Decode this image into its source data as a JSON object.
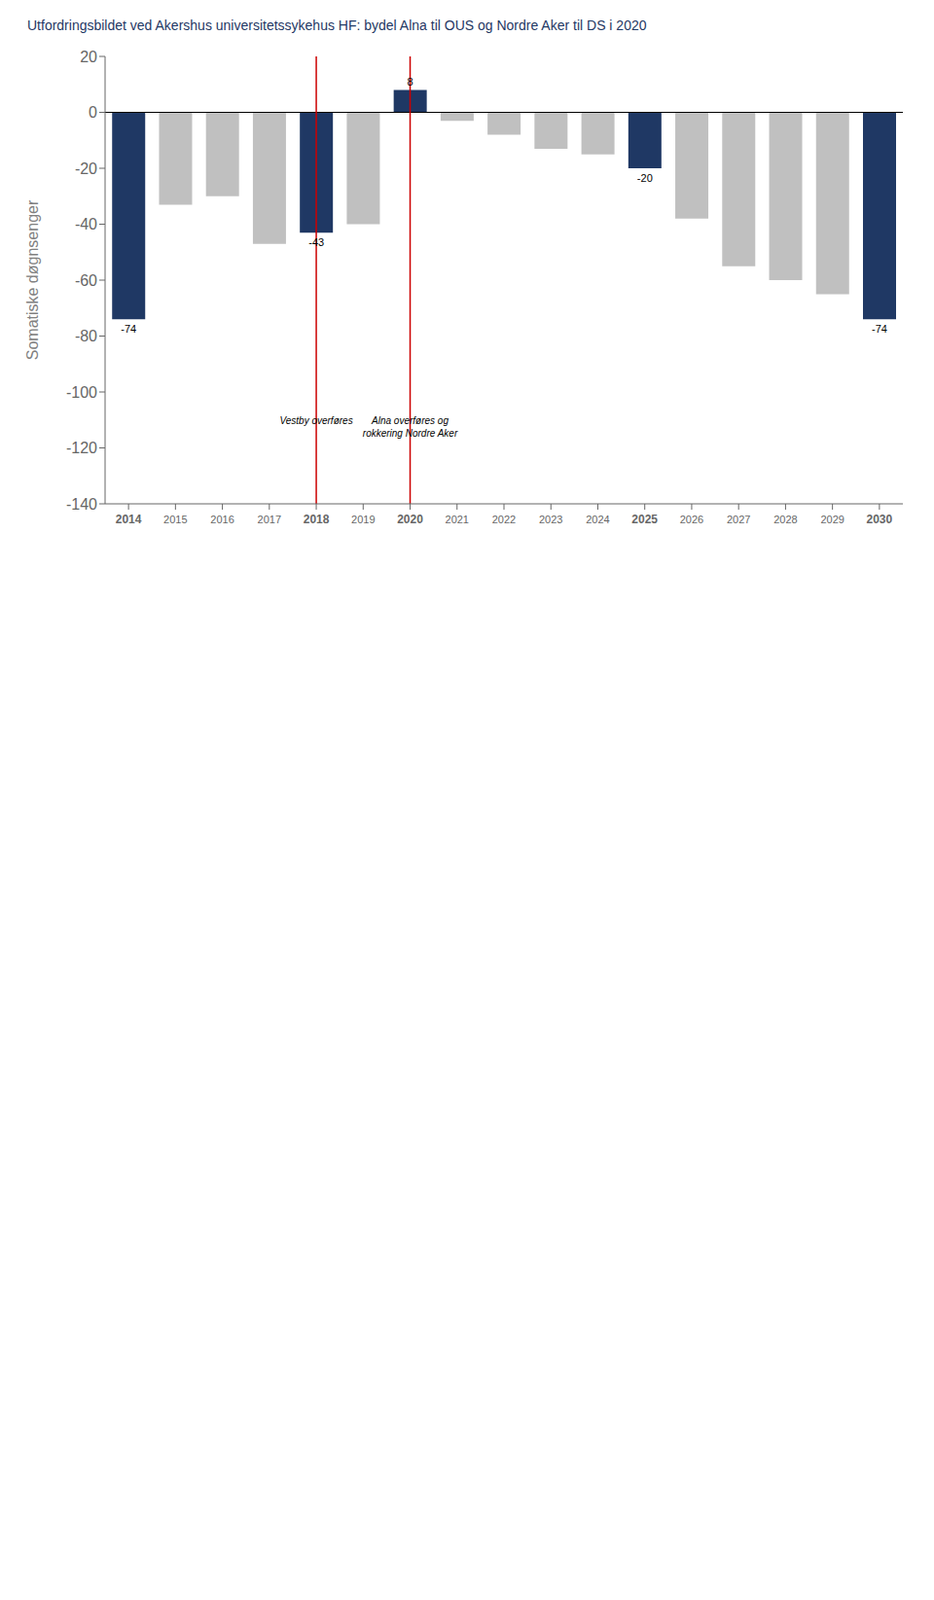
{
  "chart_data": {
    "type": "bar",
    "title": "Utfordringsbildet ved Akershus universitetssykehus HF: bydel Alna til OUS og Nordre Aker til DS i 2020",
    "title_color": "#1f3864",
    "ylabel": "Somatiske døgnsenger",
    "categories": [
      "2014",
      "2015",
      "2016",
      "2017",
      "2018",
      "2019",
      "2020",
      "2021",
      "2022",
      "2023",
      "2024",
      "2025",
      "2026",
      "2027",
      "2028",
      "2029",
      "2030"
    ],
    "values": [
      -74,
      -33,
      -30,
      -47,
      -43,
      -40,
      8,
      -3,
      -8,
      -13,
      -15,
      -20,
      -38,
      -55,
      -60,
      -65,
      -74
    ],
    "colors": [
      "#1f3864",
      "#c0c0c0",
      "#c0c0c0",
      "#c0c0c0",
      "#1f3864",
      "#c0c0c0",
      "#1f3864",
      "#c0c0c0",
      "#c0c0c0",
      "#c0c0c0",
      "#c0c0c0",
      "#1f3864",
      "#c0c0c0",
      "#c0c0c0",
      "#c0c0c0",
      "#c0c0c0",
      "#1f3864"
    ],
    "bold_categories": [
      "2014",
      "2018",
      "2020",
      "2025",
      "2030"
    ],
    "ylim": [
      -140,
      20
    ],
    "yticks": [
      20,
      0,
      -20,
      -40,
      -60,
      -80,
      -100,
      -120,
      -140
    ],
    "grid": false,
    "bar_labels": [
      {
        "x": "2014",
        "text": "-74"
      },
      {
        "x": "2018",
        "text": "-43"
      },
      {
        "x": "2020",
        "text": "8"
      },
      {
        "x": "2025",
        "text": "-20"
      },
      {
        "x": "2030",
        "text": "-74"
      }
    ],
    "vlines": [
      {
        "x": "2018",
        "color": "#cc0000"
      },
      {
        "x": "2020",
        "color": "#cc0000"
      }
    ],
    "hlines": [
      {
        "y": 0,
        "color": "#000000"
      }
    ],
    "annotations": [
      {
        "x": "2018",
        "y": -108,
        "text": "Vestby overføres"
      },
      {
        "x": "2020",
        "y": -108,
        "text": "Alna overføres og\nrokkering Nordre Aker"
      }
    ]
  }
}
